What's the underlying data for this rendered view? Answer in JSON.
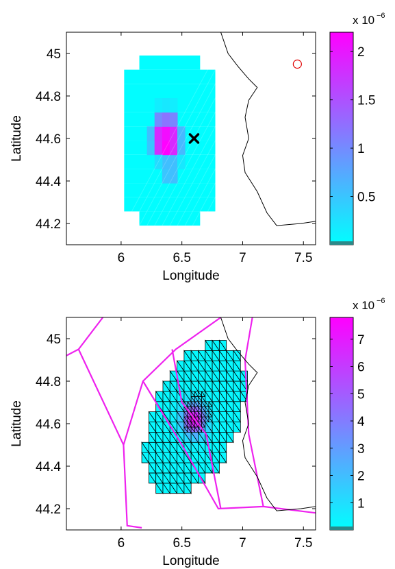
{
  "chart_data": [
    {
      "type": "heatmap",
      "xlabel": "Longitude",
      "ylabel": "Latitude",
      "xlim": [
        5.55,
        7.6
      ],
      "ylim": [
        44.1,
        45.1
      ],
      "xticks": [
        6,
        6.5,
        7,
        7.5
      ],
      "yticks": [
        44.2,
        44.4,
        44.6,
        44.8,
        45
      ],
      "colorbar": {
        "min": 0,
        "max": 2.2e-06,
        "exponent_label": "x 10",
        "exponent": "−6",
        "ticks": [
          0.5,
          1,
          1.5,
          2
        ]
      },
      "colormap": [
        "#00ffff",
        "#ff00ff"
      ],
      "grid": {
        "lon0": 6.025,
        "dlon": 0.0625,
        "lat0": 44.19,
        "dlat": 0.0667,
        "rows": [
          {
            "row": 0,
            "from": 2,
            "to": 10,
            "value": 0.02
          },
          {
            "row": 1,
            "from": 0,
            "to": 12,
            "value": 0.02
          },
          {
            "row": 2,
            "from": 0,
            "to": 12,
            "value": 0.02
          },
          {
            "row": 3,
            "from": 0,
            "to": 12,
            "value": 0.02
          },
          {
            "row": 4,
            "from": 0,
            "to": 12,
            "value": 0.02
          },
          {
            "row": 5,
            "from": 0,
            "to": 12,
            "value": 0.02
          },
          {
            "row": 6,
            "from": 0,
            "to": 12,
            "value": 0.02
          },
          {
            "row": 7,
            "from": 0,
            "to": 12,
            "value": 0.02
          },
          {
            "row": 8,
            "from": 0,
            "to": 12,
            "value": 0.02
          },
          {
            "row": 9,
            "from": 0,
            "to": 12,
            "value": 0.02
          },
          {
            "row": 10,
            "from": 0,
            "to": 12,
            "value": 0.02
          },
          {
            "row": 11,
            "from": 2,
            "to": 10,
            "value": 0.02
          }
        ],
        "cells": [
          {
            "col": 5,
            "row": 3,
            "value": 0.5
          },
          {
            "col": 6,
            "row": 3,
            "value": 0.55
          },
          {
            "col": 5,
            "row": 4,
            "value": 0.55
          },
          {
            "col": 6,
            "row": 4,
            "value": 0.55
          },
          {
            "col": 3,
            "row": 5,
            "value": 0.5
          },
          {
            "col": 4,
            "row": 5,
            "value": 1.8
          },
          {
            "col": 5,
            "row": 5,
            "value": 2.2
          },
          {
            "col": 6,
            "row": 5,
            "value": 1.85
          },
          {
            "col": 7,
            "row": 5,
            "value": 0.6
          },
          {
            "col": 3,
            "row": 6,
            "value": 0.55
          },
          {
            "col": 4,
            "row": 6,
            "value": 1.85
          },
          {
            "col": 5,
            "row": 6,
            "value": 2.1
          },
          {
            "col": 6,
            "row": 6,
            "value": 1.85
          },
          {
            "col": 7,
            "row": 6,
            "value": 0.6
          },
          {
            "col": 4,
            "row": 7,
            "value": 1.0
          },
          {
            "col": 5,
            "row": 7,
            "value": 1.2
          },
          {
            "col": 6,
            "row": 7,
            "value": 1.05
          },
          {
            "col": 4,
            "row": 4,
            "value": 0.3
          },
          {
            "col": 7,
            "row": 4,
            "value": 0.2
          },
          {
            "col": 4,
            "row": 8,
            "value": 0.15
          },
          {
            "col": 5,
            "row": 8,
            "value": 0.2
          },
          {
            "col": 6,
            "row": 8,
            "value": 0.15
          }
        ]
      },
      "marker_x": {
        "lon": 6.6,
        "lat": 44.6
      },
      "marker_circle": {
        "lon": 7.45,
        "lat": 44.95
      }
    },
    {
      "type": "heatmap",
      "xlabel": "Longitude",
      "ylabel": "Latitude",
      "xlim": [
        5.55,
        7.6
      ],
      "ylim": [
        44.1,
        45.1
      ],
      "xticks": [
        6,
        6.5,
        7,
        7.5
      ],
      "yticks": [
        44.2,
        44.4,
        44.6,
        44.8,
        45
      ],
      "colorbar": {
        "min": 0,
        "max": 7.8e-06,
        "exponent_label": "x 10",
        "exponent": "−6",
        "ticks": [
          1,
          2,
          3,
          4,
          5,
          6,
          7
        ]
      },
      "colormap": [
        "#00ffff",
        "#ff00ff"
      ],
      "hotspot": {
        "lon": 6.6,
        "lat": 44.62,
        "peak": 7.6
      },
      "mesh_extent": {
        "lon": [
          6.17,
          7.05
        ],
        "lat": [
          44.32,
          44.93
        ]
      },
      "borders_magenta": [
        [
          [
            5.55,
            44.92
          ],
          [
            5.65,
            44.95
          ],
          [
            5.85,
            45.1
          ]
        ],
        [
          [
            5.65,
            44.95
          ],
          [
            6.02,
            44.5
          ],
          [
            6.18,
            44.8
          ],
          [
            6.45,
            44.95
          ],
          [
            6.82,
            45.1
          ]
        ],
        [
          [
            6.02,
            44.5
          ],
          [
            6.05,
            44.12
          ],
          [
            6.17,
            44.11
          ]
        ],
        [
          [
            6.18,
            44.8
          ],
          [
            6.5,
            44.5
          ],
          [
            6.8,
            44.2
          ],
          [
            7.17,
            44.21
          ],
          [
            7.6,
            44.18
          ]
        ],
        [
          [
            6.42,
            44.95
          ],
          [
            6.5,
            44.7
          ],
          [
            6.7,
            44.55
          ],
          [
            6.82,
            44.2
          ]
        ],
        [
          [
            7.08,
            45.1
          ],
          [
            7.02,
            44.9
          ],
          [
            7.05,
            44.55
          ],
          [
            7.17,
            44.21
          ]
        ]
      ]
    }
  ],
  "coastline": [
    [
      6.82,
      45.1
    ],
    [
      6.88,
      45.0
    ],
    [
      6.96,
      44.94
    ],
    [
      7.05,
      44.88
    ],
    [
      7.12,
      44.84
    ],
    [
      7.05,
      44.78
    ],
    [
      7.02,
      44.7
    ],
    [
      7.05,
      44.6
    ],
    [
      7.0,
      44.52
    ],
    [
      7.02,
      44.44
    ],
    [
      7.12,
      44.35
    ],
    [
      7.2,
      44.25
    ],
    [
      7.28,
      44.19
    ],
    [
      7.48,
      44.2
    ],
    [
      7.6,
      44.21
    ]
  ]
}
